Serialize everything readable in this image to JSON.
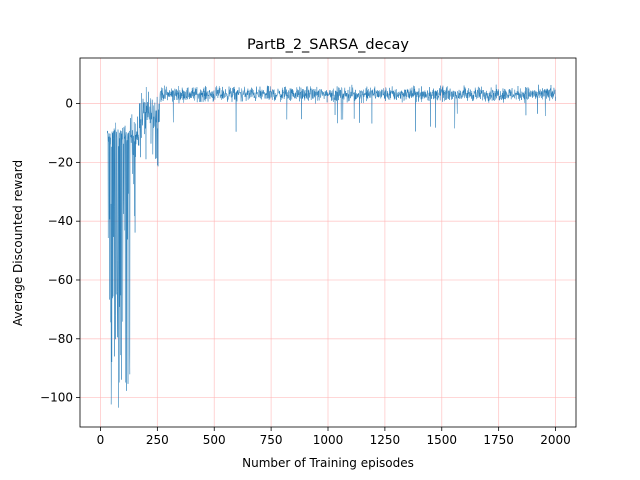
{
  "chart_data": {
    "type": "line",
    "title": "PartB_2_SARSA_decay",
    "xlabel": "Number of Training episodes",
    "ylabel": "Average Discounted reward",
    "xlim": [
      -90,
      2090
    ],
    "ylim": [
      -110,
      15.5
    ],
    "xticks": [
      0,
      250,
      500,
      750,
      1000,
      1250,
      1500,
      1750,
      2000
    ],
    "yticks": [
      -100,
      -80,
      -60,
      -40,
      -20,
      0
    ],
    "grid": true,
    "grid_color": "#ffb3b3",
    "line_color": "#1f77b4",
    "series": [
      {
        "name": "",
        "x_start": 30,
        "x_end": 2000,
        "phases": [
          {
            "x": [
              30,
              130
            ],
            "base": -11,
            "noise": 4,
            "dip_prob": 0.45,
            "dip_min": -104,
            "dip_max": -30
          },
          {
            "x": [
              130,
              170
            ],
            "base": -11,
            "noise": 7,
            "dip_prob": 0.08,
            "dip_min": -45,
            "dip_max": -20
          },
          {
            "x": [
              170,
              260
            ],
            "base": -4,
            "noise": 8,
            "dip_prob": 0.06,
            "dip_min": -22,
            "dip_max": -12
          },
          {
            "x": [
              260,
              2000
            ],
            "base": 3.2,
            "noise": 2.4,
            "dip_prob": 0.012,
            "dip_min": -10,
            "dip_max": -3
          }
        ]
      }
    ]
  }
}
